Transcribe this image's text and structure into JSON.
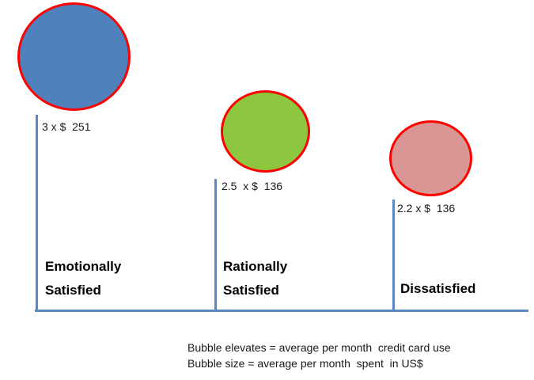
{
  "chart_data": {
    "type": "bubble",
    "title": "",
    "xlabel": "",
    "ylabel": "",
    "grid": false,
    "legend_position": "bottom",
    "bubble_border_color": "#ff0000",
    "axis_color": "#5b87c5",
    "points": [
      {
        "category": "Emotionally Satisfied",
        "category_display": "Emotionally\nSatisfied",
        "value_label": "3 x $  251",
        "uses_per_month": 3,
        "avg_monthly_spend_usd": 251,
        "bubble_color": "#4f81bd"
      },
      {
        "category": "Rationally Satisfied",
        "category_display": "Rationally\nSatisfied",
        "value_label": "2.5  x $  136",
        "uses_per_month": 2.5,
        "avg_monthly_spend_usd": 136,
        "bubble_color": "#8dc63f"
      },
      {
        "category": "Dissatisfied",
        "category_display": "Dissatisfied",
        "value_label": "2.2 x $  136",
        "uses_per_month": 2.2,
        "avg_monthly_spend_usd": 136,
        "bubble_color": "#d99694"
      }
    ],
    "notes": [
      "Bubble elevates = average per month  credit card use",
      "Bubble size = average per month  spent  in US$"
    ]
  }
}
